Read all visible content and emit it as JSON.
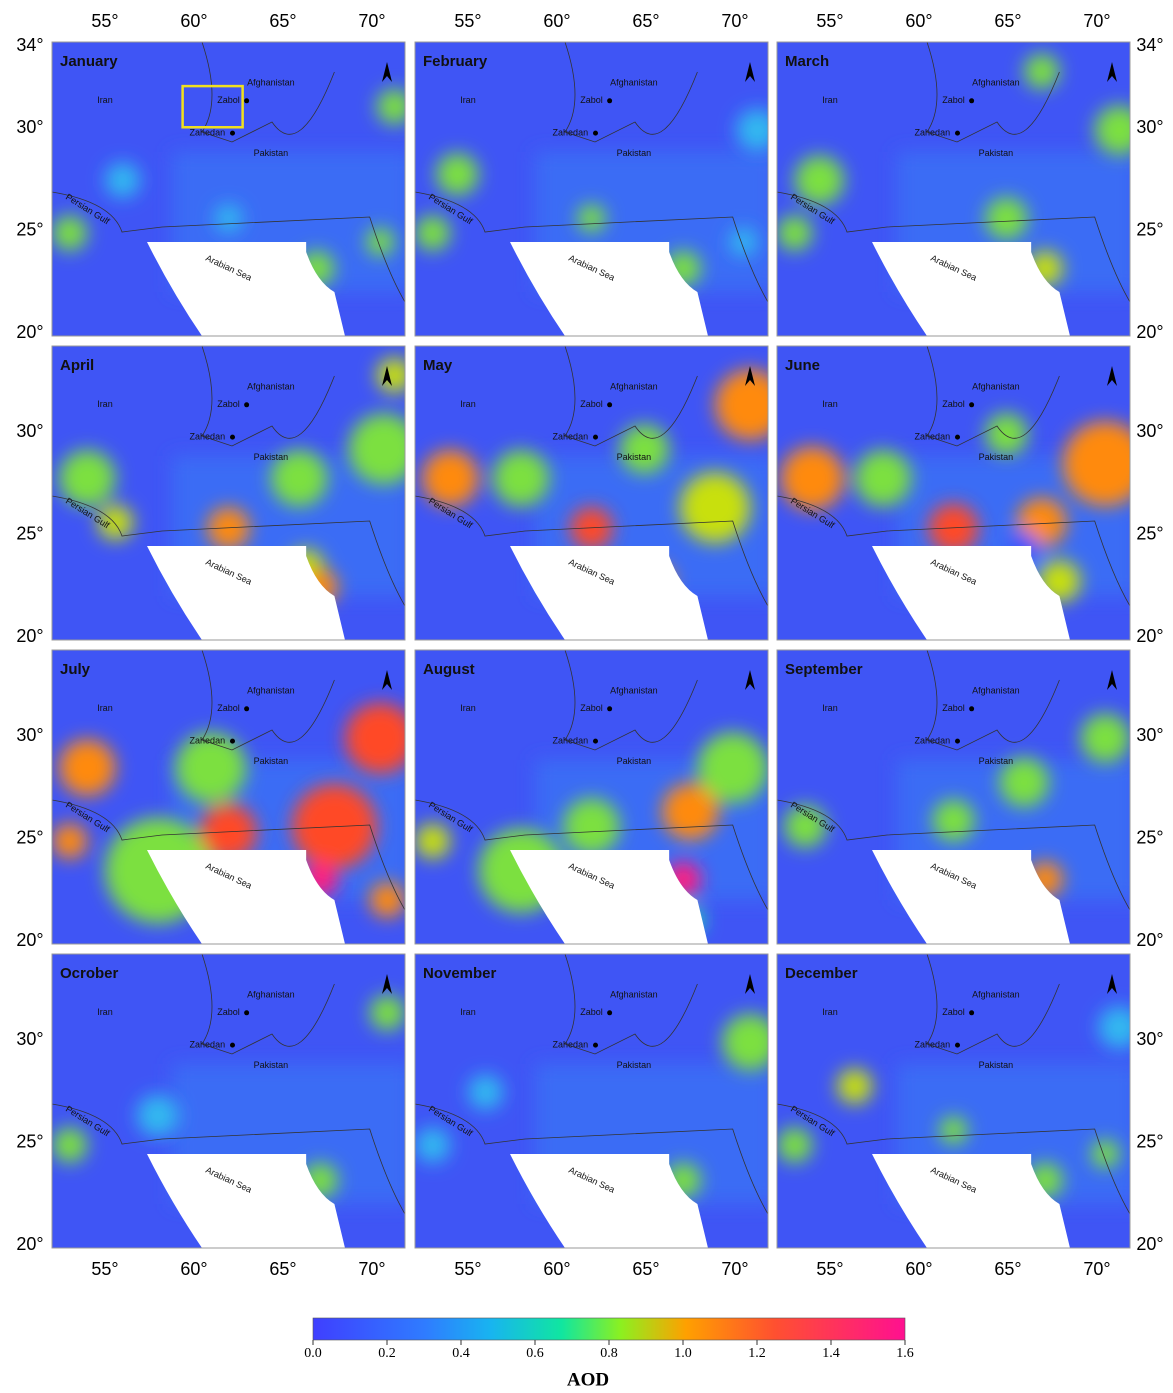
{
  "panels": [
    {
      "month": "January"
    },
    {
      "month": "February"
    },
    {
      "month": "March"
    },
    {
      "month": "April"
    },
    {
      "month": "May"
    },
    {
      "month": "June"
    },
    {
      "month": "July"
    },
    {
      "month": "August"
    },
    {
      "month": "September"
    },
    {
      "month": "Ocrober"
    },
    {
      "month": "November"
    },
    {
      "month": "December"
    }
  ],
  "places": [
    "Iran",
    "Zabol",
    "Zahedan",
    "Afghanistan",
    "Pakistan",
    "Arabian Sea",
    "Persian Gulf"
  ],
  "lon_ticks": [
    {
      "value": 55,
      "label": "55°"
    },
    {
      "value": 60,
      "label": "60°"
    },
    {
      "value": 65,
      "label": "65°"
    },
    {
      "value": 70,
      "label": "70°"
    }
  ],
  "lat_ticks": [
    {
      "value": 34,
      "label": "34°"
    },
    {
      "value": 30,
      "label": "30°"
    },
    {
      "value": 25,
      "label": "25°"
    },
    {
      "value": 20,
      "label": "20°"
    }
  ],
  "colorbar": {
    "label": "AOD",
    "range": [
      0,
      1.6
    ],
    "ticks": [
      {
        "value": 0,
        "label": "0.0"
      },
      {
        "value": 0.2,
        "label": "0.2"
      },
      {
        "value": 0.4,
        "label": "0.4"
      },
      {
        "value": 0.6,
        "label": "0.6"
      },
      {
        "value": 0.8,
        "label": "0.8"
      },
      {
        "value": 1.0,
        "label": "1.0"
      },
      {
        "value": 1.2,
        "label": "1.2"
      },
      {
        "value": 1.4,
        "label": "1.4"
      },
      {
        "value": 1.6,
        "label": "1.6"
      }
    ]
  }
}
